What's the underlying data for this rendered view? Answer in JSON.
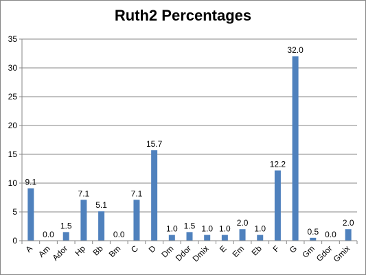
{
  "chart_data": {
    "type": "bar",
    "title": "Ruth2 Percentages",
    "xlabel": "",
    "ylabel": "",
    "categories": [
      "A",
      "Am",
      "Ador",
      "Hp",
      "Bb",
      "Bm",
      "C",
      "D",
      "Dm",
      "Ddor",
      "Dmix",
      "E",
      "Em",
      "Eb",
      "F",
      "G",
      "Gm",
      "Gdor",
      "Gmix"
    ],
    "values": [
      9.1,
      0.0,
      1.5,
      7.1,
      5.1,
      0.0,
      7.1,
      15.7,
      1.0,
      1.5,
      1.0,
      1.0,
      2.0,
      1.0,
      12.2,
      32.0,
      0.5,
      0.0,
      2.0
    ],
    "data_labels": [
      "9.1",
      "0.0",
      "1.5",
      "7.1",
      "5.1",
      "0.0",
      "7.1",
      "15.7",
      "1.0",
      "1.5",
      "1.0",
      "1.0",
      "2.0",
      "1.0",
      "12.2",
      "32.0",
      "0.5",
      "0.0",
      "2.0"
    ],
    "ylim": [
      0,
      35
    ],
    "yticks": [
      "0",
      "5",
      "10",
      "15",
      "20",
      "25",
      "30",
      "35"
    ],
    "grid": true,
    "legend": "none",
    "colors": {
      "bar": "#4f81bd",
      "grid": "#868686",
      "axis": "#868686"
    }
  }
}
